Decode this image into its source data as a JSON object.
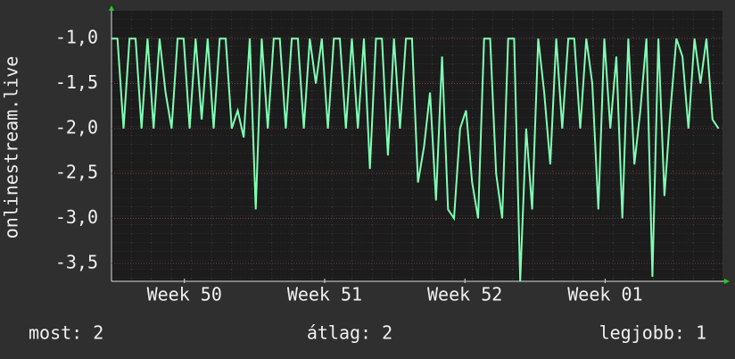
{
  "chart_data": {
    "type": "line",
    "y_label": "onlinestream.live",
    "xlim": [
      0,
      30.5
    ],
    "xticks": [
      {
        "value": 3.64,
        "label": "Week 50"
      },
      {
        "value": 10.64,
        "label": "Week 51"
      },
      {
        "value": 17.64,
        "label": "Week 52"
      },
      {
        "value": 24.64,
        "label": "Week 01"
      }
    ],
    "ylim": [
      -3.7,
      -0.69
    ],
    "yticks": [
      {
        "value": -1,
        "label": "-1,0"
      },
      {
        "value": -1.5,
        "label": "-1,5"
      },
      {
        "value": -2,
        "label": "-2,0"
      },
      {
        "value": -2.5,
        "label": "-2,5"
      },
      {
        "value": -3,
        "label": "-3,0"
      },
      {
        "value": -3.5,
        "label": "-3,5"
      }
    ],
    "grid": true,
    "x": [
      0,
      0.3,
      0.6,
      0.9,
      1.2,
      1.5,
      1.8,
      2.1,
      2.4,
      2.7,
      3,
      3.3,
      3.6,
      3.9,
      4.2,
      4.5,
      4.8,
      5.1,
      5.4,
      5.7,
      6,
      6.3,
      6.6,
      6.9,
      7.2,
      7.5,
      7.8,
      8.1,
      8.4,
      8.7,
      9,
      9.3,
      9.6,
      9.9,
      10.2,
      10.5,
      10.8,
      11.1,
      11.4,
      11.7,
      12,
      12.3,
      12.6,
      12.9,
      13.2,
      13.5,
      13.8,
      14.1,
      14.4,
      14.7,
      15,
      15.3,
      15.6,
      15.9,
      16.2,
      16.5,
      16.8,
      17.1,
      17.4,
      17.7,
      18,
      18.3,
      18.6,
      18.9,
      19.2,
      19.5,
      19.8,
      20.1,
      20.4,
      20.7,
      21,
      21.3,
      21.6,
      21.9,
      22.2,
      22.5,
      22.8,
      23.1,
      23.4,
      23.7,
      24,
      24.3,
      24.6,
      24.9,
      25.2,
      25.5,
      25.8,
      26.1,
      26.4,
      26.7,
      27,
      27.3,
      27.6,
      27.9,
      28.2,
      28.5,
      28.8,
      29.1,
      29.4,
      29.7,
      30,
      30.3
    ],
    "series": [
      {
        "color": "#80ffb4",
        "values": [
          -1,
          -1,
          -2,
          -1,
          -1,
          -2,
          -1,
          -2,
          -1,
          -1.6,
          -2,
          -1,
          -1,
          -2,
          -1,
          -1.9,
          -1,
          -2,
          -1,
          -1,
          -2,
          -1.8,
          -2.1,
          -1,
          -2.9,
          -1,
          -2,
          -1,
          -1,
          -2,
          -1,
          -1,
          -2,
          -1,
          -1.5,
          -1,
          -2,
          -1,
          -1,
          -2,
          -1,
          -2,
          -1,
          -2.45,
          -1,
          -1,
          -2.3,
          -1,
          -2,
          -1,
          -1,
          -2.6,
          -2.2,
          -1.6,
          -2.8,
          -1.2,
          -2.9,
          -3,
          -2,
          -1.8,
          -2.6,
          -3,
          -1,
          -1,
          -2.5,
          -3,
          -1,
          -1,
          -3.7,
          -2,
          -2.9,
          -1,
          -1.6,
          -2.4,
          -1,
          -2,
          -1,
          -1,
          -2,
          -1,
          -1.5,
          -2.9,
          -1,
          -2,
          -1.2,
          -3,
          -1,
          -2.4,
          -1.8,
          -1,
          -3.65,
          -1,
          -2.75,
          -1.8,
          -1,
          -1.2,
          -2,
          -1,
          -1.5,
          -1,
          -1.9,
          -2
        ]
      }
    ]
  },
  "legend": {
    "items": [
      "most: 2",
      "átlag: 2",
      "legjobb: 1"
    ]
  }
}
